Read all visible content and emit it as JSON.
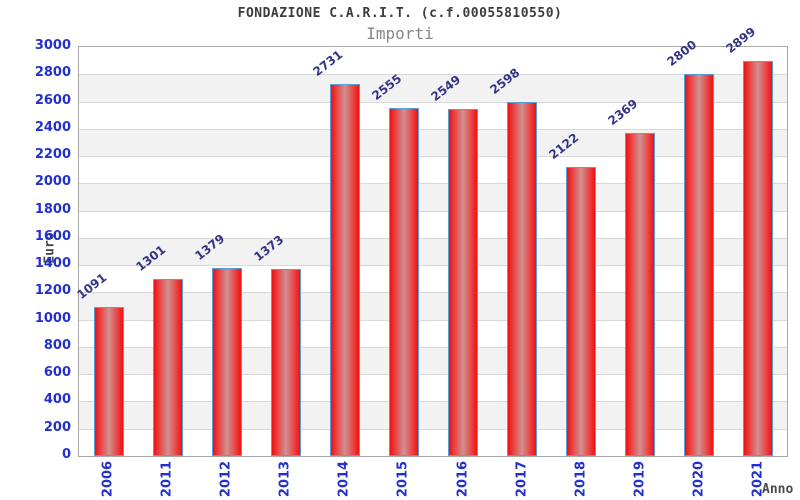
{
  "chart_data": {
    "type": "bar",
    "title": "FONDAZIONE C.A.R.I.T. (c.f.00055810550)",
    "subtitle": "Importi",
    "xlabel": "Anno",
    "ylabel": "Euro",
    "categories": [
      "2006",
      "2011",
      "2012",
      "2013",
      "2014",
      "2015",
      "2016",
      "2017",
      "2018",
      "2019",
      "2020",
      "2021"
    ],
    "values": [
      1091,
      1301,
      1379,
      1373,
      2731,
      2555,
      2549,
      2598,
      2122,
      2369,
      2800,
      2899
    ],
    "ylim": [
      0,
      3000
    ],
    "y_tick_step": 200,
    "y_ticks": [
      0,
      200,
      400,
      600,
      800,
      1000,
      1200,
      1400,
      1600,
      1800,
      2000,
      2200,
      2400,
      2600,
      2800,
      3000
    ],
    "grid": "horizontal",
    "legend": "none",
    "band_count": 15,
    "colors": {
      "bar_edge": "#ef1111",
      "bar_mid": "#cf9090",
      "bar_border": "#55a0d8",
      "tick_label": "#2230cc",
      "value_label": "#333388",
      "band_alt": "#f2f2f2",
      "band_base": "#ffffff",
      "gridline": "#d9d9d9",
      "plot_border": "#a9a9a9",
      "title": "#3c3c3c",
      "subtitle": "#878787",
      "axis_title": "#4a4a4a"
    }
  }
}
